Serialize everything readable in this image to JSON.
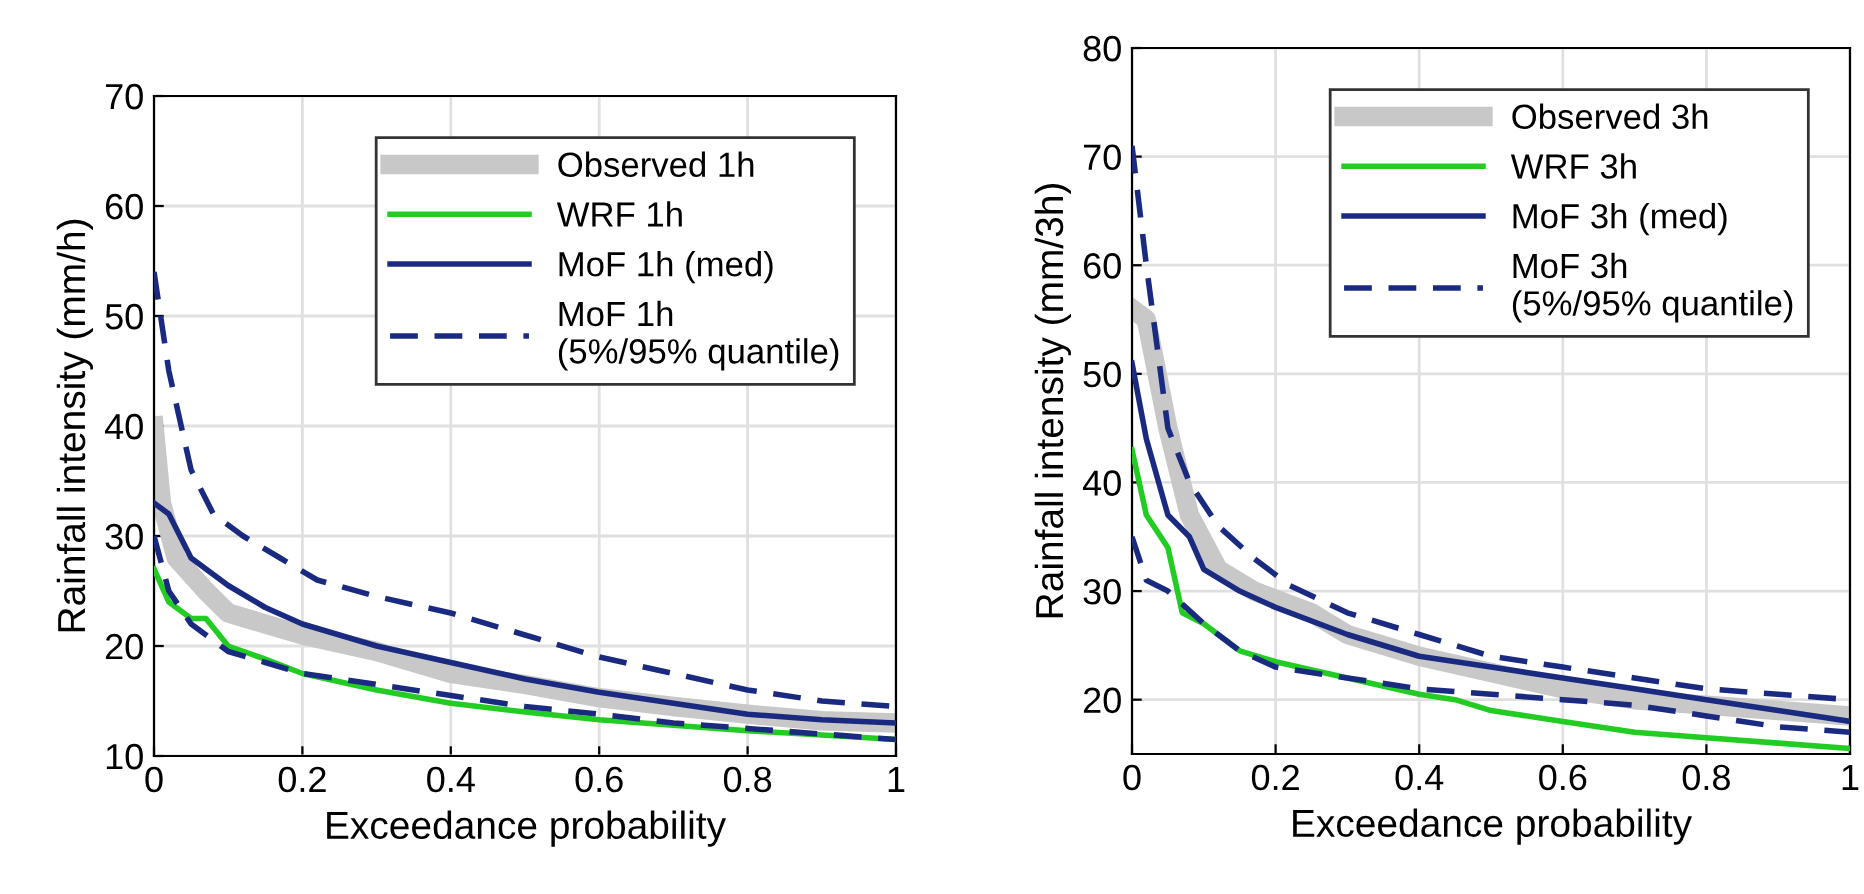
{
  "chart_data": [
    {
      "type": "line",
      "xlabel": "Exceedance probability",
      "ylabel": "Rainfall intensity (mm/h)",
      "xlim": [
        0,
        1
      ],
      "xticks": [
        0,
        0.2,
        0.4,
        0.6,
        0.8,
        1
      ],
      "ylim": [
        10,
        70
      ],
      "yticks": [
        10,
        20,
        30,
        40,
        50,
        60,
        70
      ],
      "grid": true,
      "legend": "top right",
      "marker": "none",
      "series": [
        {
          "name": "Observed 1h",
          "color": "#c8c8c8",
          "line_style": "solid",
          "x": [
            0,
            0.01,
            0.03,
            0.07,
            0.1,
            0.2,
            0.3,
            0.4,
            0.5,
            0.6,
            0.7,
            0.8,
            0.9,
            1
          ],
          "values": [
            40,
            33,
            28,
            25,
            23,
            21,
            19.5,
            17.5,
            16.5,
            15.3,
            14.5,
            13.8,
            13.2,
            13
          ]
        },
        {
          "name": "WRF 1h",
          "color": "#22cc22",
          "line_style": "solid",
          "x": [
            0,
            0.02,
            0.05,
            0.07,
            0.1,
            0.15,
            0.2,
            0.3,
            0.4,
            0.5,
            0.6,
            0.7,
            0.8,
            0.9,
            1
          ],
          "values": [
            27,
            24,
            22.5,
            22.5,
            20,
            18.8,
            17.5,
            16,
            14.8,
            14,
            13.3,
            12.8,
            12.3,
            11.9,
            11.5
          ]
        },
        {
          "name": "MoF 1h (med)",
          "color": "#1a2a80",
          "line_style": "solid",
          "x": [
            0,
            0.02,
            0.05,
            0.1,
            0.15,
            0.2,
            0.3,
            0.4,
            0.5,
            0.6,
            0.7,
            0.8,
            0.9,
            1
          ],
          "values": [
            33,
            32,
            28,
            25.5,
            23.5,
            22,
            20,
            18.5,
            17,
            15.8,
            14.8,
            13.8,
            13.3,
            13
          ]
        },
        {
          "name": "MoF 1h\n(5%/95% quantile)",
          "color": "#1a2a80",
          "line_style": "dashed",
          "x": [
            0,
            0.02,
            0.05,
            0.08,
            0.12,
            0.17,
            0.22,
            0.3,
            0.4,
            0.5,
            0.6,
            0.7,
            0.8,
            0.9,
            1
          ],
          "values": [
            54,
            45,
            36,
            32,
            30,
            28,
            26,
            24.5,
            23,
            21,
            19,
            17.5,
            16,
            15,
            14.5
          ]
        },
        {
          "color": "#1a2a80",
          "line_style": "dashed",
          "x": [
            0,
            0.02,
            0.05,
            0.1,
            0.15,
            0.2,
            0.3,
            0.4,
            0.5,
            0.6,
            0.7,
            0.8,
            0.9,
            1
          ],
          "values": [
            30,
            25,
            22,
            19.5,
            18.5,
            17.5,
            16.5,
            15.5,
            14.5,
            13.8,
            13,
            12.5,
            12,
            11.5
          ]
        }
      ]
    },
    {
      "type": "line",
      "xlabel": "Exceedance probability",
      "ylabel": "Rainfall intensity (mm/3h)",
      "xlim": [
        0,
        1
      ],
      "xticks": [
        0,
        0.2,
        0.4,
        0.6,
        0.8,
        1
      ],
      "ylim": [
        15,
        80
      ],
      "yticks": [
        20,
        30,
        40,
        50,
        60,
        70,
        80
      ],
      "grid": true,
      "legend": "top right",
      "marker": "none",
      "series": [
        {
          "name": "Observed 3h",
          "color": "#c8c8c8",
          "line_style": "solid",
          "x": [
            0,
            0.02,
            0.05,
            0.08,
            0.12,
            0.17,
            0.25,
            0.3,
            0.4,
            0.5,
            0.6,
            0.7,
            0.8,
            0.9,
            1
          ],
          "values": [
            56,
            55,
            45,
            37,
            32,
            30,
            28,
            26,
            24,
            22.5,
            21,
            20,
            19.5,
            19,
            18.5
          ]
        },
        {
          "name": "WRF 3h",
          "color": "#22cc22",
          "line_style": "solid",
          "x": [
            0,
            0.02,
            0.05,
            0.07,
            0.1,
            0.15,
            0.2,
            0.3,
            0.4,
            0.45,
            0.5,
            0.6,
            0.7,
            0.8,
            0.9,
            1
          ],
          "values": [
            43,
            37,
            34,
            28,
            27,
            24.5,
            23.5,
            22,
            20.5,
            20,
            19,
            18,
            17,
            16.5,
            16,
            15.5
          ]
        },
        {
          "name": "MoF 3h (med)",
          "color": "#1a2a80",
          "line_style": "solid",
          "x": [
            0,
            0.02,
            0.05,
            0.08,
            0.1,
            0.15,
            0.2,
            0.3,
            0.4,
            0.5,
            0.6,
            0.7,
            0.8,
            0.9,
            1
          ],
          "values": [
            51,
            44,
            37,
            35,
            32,
            30,
            28.5,
            26,
            24,
            23,
            22,
            21,
            20,
            19,
            18
          ]
        },
        {
          "name": "MoF 3h\n(5%/95% quantile)",
          "color": "#1a2a80",
          "line_style": "dashed",
          "x": [
            0,
            0.02,
            0.05,
            0.08,
            0.12,
            0.17,
            0.22,
            0.3,
            0.4,
            0.5,
            0.6,
            0.7,
            0.8,
            0.9,
            1
          ],
          "values": [
            71,
            60,
            45,
            40,
            36,
            33,
            30.5,
            28,
            26,
            24,
            23,
            22,
            21,
            20.5,
            20
          ]
        },
        {
          "color": "#1a2a80",
          "line_style": "dashed",
          "x": [
            0,
            0.02,
            0.05,
            0.1,
            0.15,
            0.2,
            0.3,
            0.4,
            0.5,
            0.6,
            0.7,
            0.8,
            0.9,
            1
          ],
          "values": [
            35,
            31,
            30,
            27,
            24.5,
            23,
            22,
            21,
            20.5,
            20,
            19.5,
            18.5,
            17.5,
            17
          ]
        }
      ]
    }
  ]
}
